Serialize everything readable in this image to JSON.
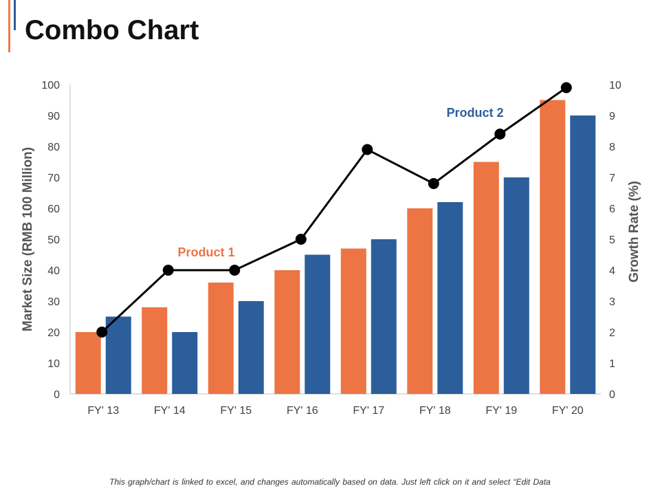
{
  "title": "Combo Chart",
  "footer": "This graph/chart is linked to excel, and changes automatically  based on data.  Just left click on it and select “Edit Data",
  "colors": {
    "product1": "#ED7544",
    "product2": "#2C5E9B",
    "line": "#000000",
    "axis_text": "#555555",
    "accent_orange": "#F07A45",
    "accent_blue": "#2E5C9A"
  },
  "chart_data": {
    "type": "bar",
    "categories": [
      "FY' 13",
      "FY' 14",
      "FY' 15",
      "FY' 16",
      "FY' 17",
      "FY' 18",
      "FY' 19",
      "FY' 20"
    ],
    "series": [
      {
        "name": "Product 1",
        "type": "bar",
        "axis": "left",
        "values": [
          20,
          28,
          36,
          40,
          47,
          60,
          75,
          95
        ]
      },
      {
        "name": "Product 2",
        "type": "bar",
        "axis": "left",
        "values": [
          25,
          20,
          30,
          45,
          50,
          62,
          70,
          90
        ]
      },
      {
        "type": "line",
        "axis": "right",
        "values": [
          2,
          4,
          4,
          5,
          7.9,
          6.8,
          8.4,
          9.9
        ]
      }
    ],
    "ylabel": "Market Size (RMB 100 Million)",
    "ylabel_right": "Growth  Rate (%)",
    "ylim": [
      0,
      100
    ],
    "yticks": [
      0,
      10,
      20,
      30,
      40,
      50,
      60,
      70,
      80,
      90,
      100
    ],
    "ylim_right": [
      0,
      10
    ],
    "yticks_right": [
      0,
      1,
      2,
      3,
      4,
      5,
      6,
      7,
      8,
      9,
      10
    ],
    "annotations": [
      "Product 1",
      "Product 2"
    ],
    "grid": false
  }
}
